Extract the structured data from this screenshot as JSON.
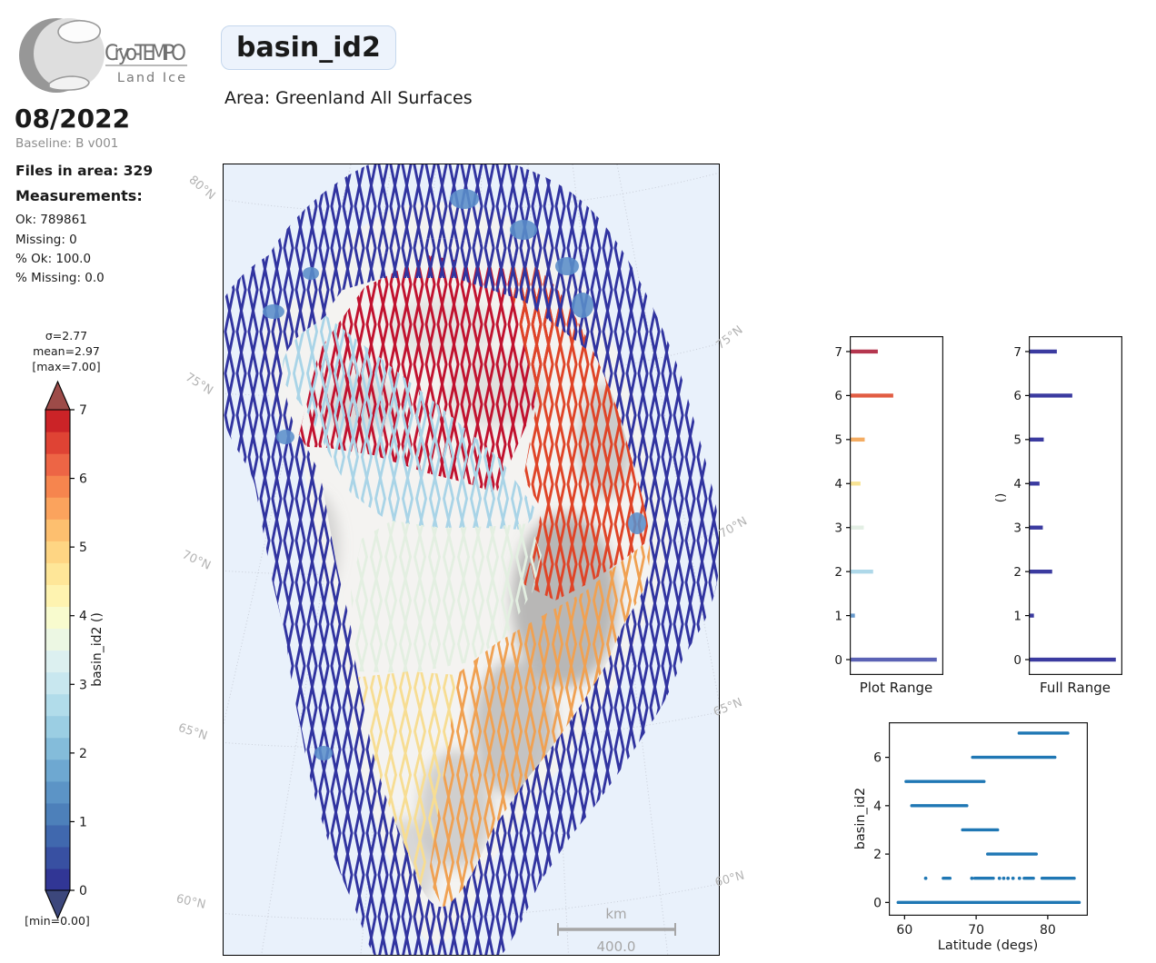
{
  "header": {
    "logo_line1": "Cryo-TEMPO",
    "logo_line2": "Land Ice",
    "variable": "basin_id2",
    "area_label": "Area: Greenland All Surfaces",
    "date": "08/2022",
    "baseline": "Baseline: B v001"
  },
  "stats": {
    "files": "Files in area: 329",
    "measurements_label": "Measurements:",
    "lines": [
      "Ok: 789861",
      "Missing: 0",
      "% Ok: 100.0",
      "% Missing: 0.0"
    ]
  },
  "colorbar": {
    "sigma": "σ=2.77",
    "mean": "mean=2.97",
    "max": "[max=7.00]",
    "min": "[min=0.00]",
    "label": "basin_id2 ()",
    "ticks": [
      0,
      1,
      2,
      3,
      4,
      5,
      6,
      7
    ],
    "steps": [
      "#313695",
      "#3850a2",
      "#4068ae",
      "#4d80ba",
      "#5c94c6",
      "#6ea8d1",
      "#84bcda",
      "#9bcee3",
      "#b1dcea",
      "#c8e7ef",
      "#dcf0f0",
      "#ecf7e3",
      "#f8fbce",
      "#fef3b0",
      "#fee698",
      "#fed583",
      "#fdbf6f",
      "#fba35d",
      "#f6854e",
      "#ed6545",
      "#df4334",
      "#cb2327"
    ],
    "over_color": "#9d4b48",
    "under_color": "#3c477c"
  },
  "map": {
    "ocean_color": "#e9f1fb",
    "graticule_color": "#c9ced8",
    "lat_labels_left": [
      "80°N",
      "75°N",
      "70°N",
      "65°N",
      "60°N"
    ],
    "lat_labels_right": [
      "75°N",
      "70°N",
      "65°N",
      "60°N"
    ],
    "scalebar": {
      "unit": "km",
      "value": "400.0"
    },
    "colors": {
      "0": "#3134a0",
      "1": "#5b8ec9",
      "2": "#a9d4e7",
      "3": "#e3efe1",
      "4": "#f7dd92",
      "5": "#f0a152",
      "6": "#df4427",
      "7": "#c1122f"
    }
  },
  "chart_data": [
    {
      "id": "plot_range",
      "type": "bar",
      "orientation": "horizontal",
      "xlabel": "Plot Range",
      "ylabel": "",
      "categories": [
        0,
        1,
        2,
        3,
        4,
        5,
        6,
        7
      ],
      "values": [
        0.93,
        0.055,
        0.25,
        0.15,
        0.115,
        0.16,
        0.465,
        0.3
      ],
      "colors": [
        "#5b62b5",
        "#6699cc",
        "#aed8e9",
        "#e3efe4",
        "#f8e394",
        "#f4ac62",
        "#e25d43",
        "#b5364f"
      ],
      "ylim": [
        -0.35,
        7.35
      ],
      "note": "bar lengths are fraction of axis width"
    },
    {
      "id": "full_range",
      "type": "bar",
      "orientation": "horizontal",
      "xlabel": "Full Range",
      "ylabel": "()",
      "categories": [
        0,
        1,
        2,
        3,
        4,
        5,
        6,
        7
      ],
      "values": [
        0.93,
        0.055,
        0.25,
        0.15,
        0.115,
        0.16,
        0.465,
        0.3
      ],
      "color": "#3b3ba0",
      "ylim": [
        -0.35,
        7.35
      ]
    },
    {
      "id": "lat_scatter",
      "type": "scatter",
      "xlabel": "Latitude (degs)",
      "ylabel": "basin_id2",
      "color": "#1f77b4",
      "xticks": [
        60,
        70,
        80
      ],
      "yticks": [
        0,
        2,
        4,
        6
      ],
      "xlim": [
        57.8,
        85.6
      ],
      "ylim": [
        -0.55,
        7.45
      ],
      "segments": [
        {
          "v": 7,
          "runs": [
            [
              76.0,
              82.8
            ]
          ]
        },
        {
          "v": 6,
          "runs": [
            [
              69.5,
              81.0
            ]
          ]
        },
        {
          "v": 5,
          "runs": [
            [
              60.2,
              71.1
            ]
          ]
        },
        {
          "v": 4,
          "runs": [
            [
              61.0,
              68.7
            ]
          ]
        },
        {
          "v": 3,
          "runs": [
            [
              68.1,
              73.0
            ]
          ]
        },
        {
          "v": 2,
          "runs": [
            [
              71.6,
              78.4
            ]
          ]
        },
        {
          "v": 1,
          "runs": [
            [
              62.85,
              63.05
            ],
            [
              65.4,
              66.35
            ],
            [
              69.25,
              69.55
            ],
            [
              69.8,
              72.4
            ],
            [
              73.15,
              73.35
            ],
            [
              73.75,
              73.95
            ],
            [
              74.35,
              74.55
            ],
            [
              74.95,
              75.35
            ],
            [
              75.85,
              76.25
            ],
            [
              76.7,
              78.0
            ],
            [
              79.2,
              83.7
            ]
          ]
        },
        {
          "v": 0,
          "runs": [
            [
              59.1,
              84.4
            ]
          ]
        }
      ]
    }
  ]
}
